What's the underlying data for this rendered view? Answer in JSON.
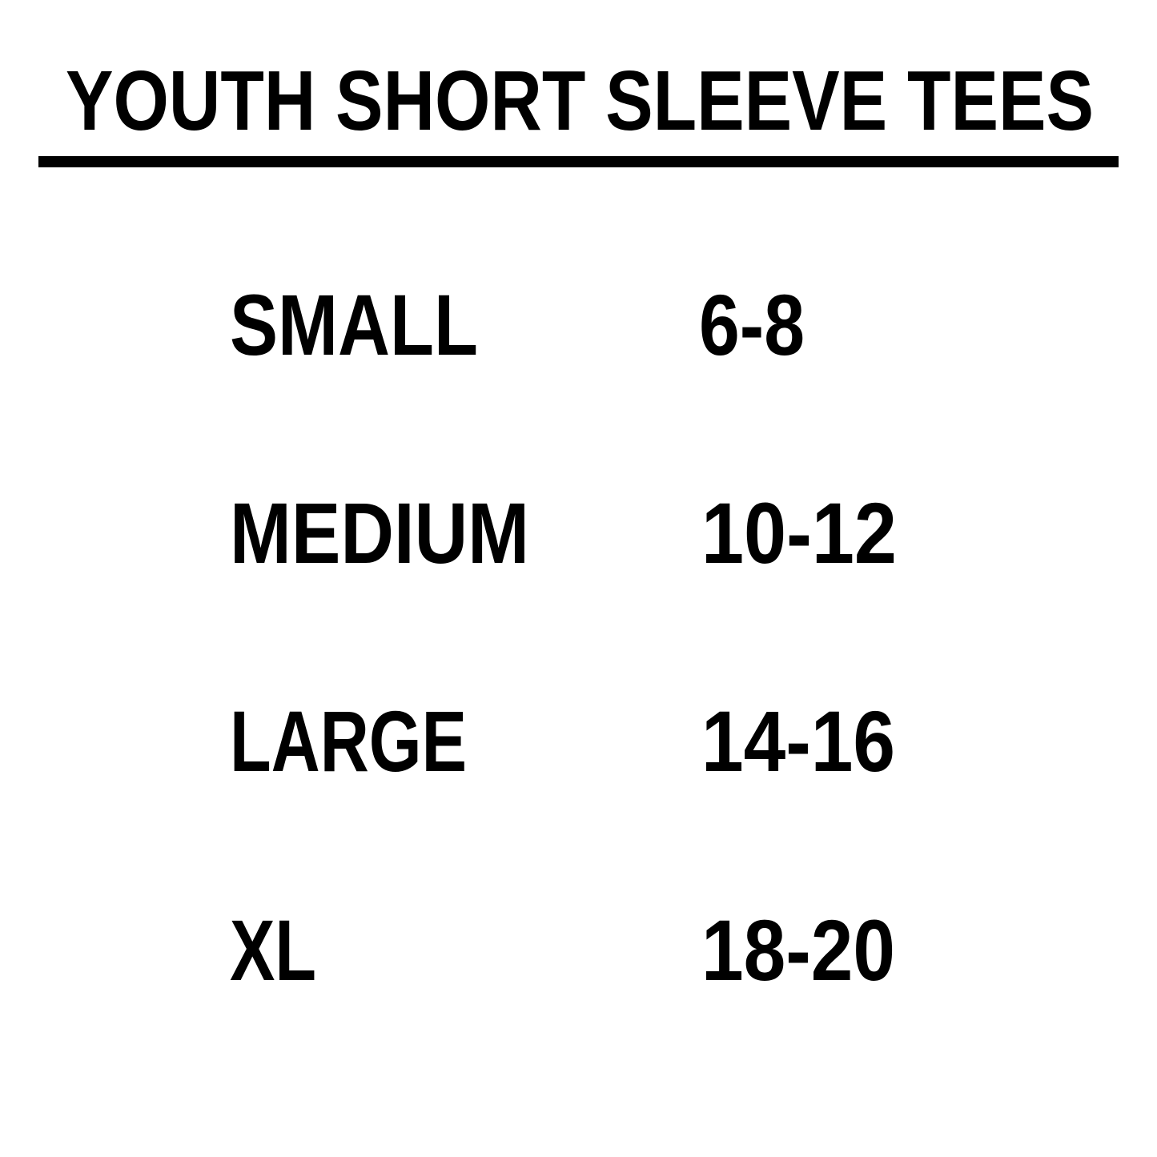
{
  "title": "YOUTH SHORT SLEEVE TEES",
  "sizes": [
    {
      "label": "SMALL",
      "range": "6-8"
    },
    {
      "label": "MEDIUM",
      "range": "10-12"
    },
    {
      "label": "LARGE",
      "range": "14-16"
    },
    {
      "label": "XL",
      "range": "18-20"
    }
  ],
  "colors": {
    "text": "#000000",
    "background": "#ffffff"
  }
}
